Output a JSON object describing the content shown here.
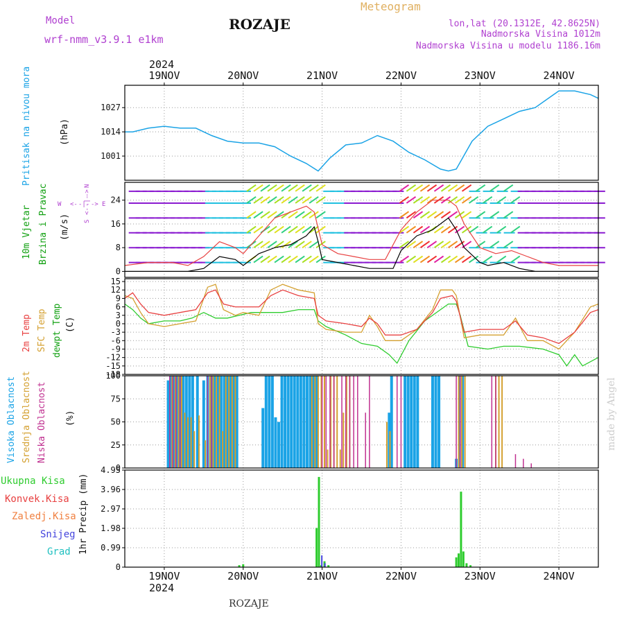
{
  "header": {
    "model_label": "Model",
    "model_value": "wrf-nmm_v3.9.1  e1km",
    "title": "ROZAJE",
    "meteogram": "Meteogram",
    "lonlat": "lon,lat (20.1312E, 42.8625N)",
    "altitude": "Nadmorska Visina 1012m",
    "model_altitude": "Nadmorska Visina u modelu 1186.16m",
    "year": "2024",
    "footer_title": "ROZAJE",
    "credit": "made by Angel"
  },
  "colors": {
    "pressure": "#1aa3e6",
    "wind_label": "#10a010",
    "temp2m": "#e84040",
    "sfc": "#d4a030",
    "dew": "#2ecc2e",
    "high_cloud": "#1aa3e6",
    "mid_cloud": "#d4a030",
    "low_cloud": "#c03090",
    "precip_total": "#2ecc2e",
    "precip_conv": "#e84040",
    "precip_frz": "#f08040",
    "snow": "#4444dd",
    "hail": "#20c0c0",
    "purple": "#b040d0",
    "orange": "#e0b060"
  },
  "chart_data": [
    {
      "type": "line",
      "panel": "pressure",
      "ylabel": [
        "Pritisak na nivou mora",
        "(hPa)"
      ],
      "yticks": [
        1001,
        1014,
        1027
      ],
      "ylim": [
        988,
        1039
      ],
      "xlim": [
        18.5,
        24.5
      ],
      "x_ticks": [
        "19NOV",
        "20NOV",
        "21NOV",
        "22NOV",
        "23NOV",
        "24NOV"
      ],
      "series": [
        {
          "x": [
            18.5,
            18.6,
            18.8,
            19.0,
            19.2,
            19.4,
            19.6,
            19.8,
            20.0,
            20.2,
            20.4,
            20.6,
            20.8,
            20.95,
            21.1,
            21.3,
            21.5,
            21.7,
            21.9,
            22.1,
            22.3,
            22.5,
            22.6,
            22.7,
            22.9,
            23.1,
            23.3,
            23.5,
            23.7,
            23.9,
            24.0,
            24.2,
            24.4,
            24.5
          ],
          "y": [
            1014,
            1014,
            1016,
            1017,
            1016,
            1016,
            1012,
            1009,
            1008,
            1008,
            1006,
            1001,
            997,
            993,
            1000,
            1007,
            1008,
            1012,
            1009,
            1003,
            999,
            994,
            993,
            994,
            1009,
            1017,
            1021,
            1025,
            1027,
            1033,
            1036,
            1036,
            1034,
            1032
          ]
        }
      ]
    },
    {
      "type": "line",
      "panel": "wind",
      "ylabel": [
        "10m Vjetar",
        "Brzina i Pravac",
        "(m/s)"
      ],
      "yticks": [
        0,
        8,
        16,
        24
      ],
      "ylim": [
        -2,
        30
      ],
      "compass": [
        "W",
        "<-",
        "-|-",
        "->",
        "E",
        "S",
        "<-",
        "-|-",
        "->",
        "N"
      ],
      "series": [
        {
          "name": "speed",
          "x": [
            18.5,
            18.8,
            19.1,
            19.3,
            19.5,
            19.7,
            19.9,
            20.0,
            20.2,
            20.4,
            20.6,
            20.8,
            20.9,
            20.95,
            21.0,
            21.2,
            21.4,
            21.6,
            21.8,
            21.9,
            22.0,
            22.2,
            22.4,
            22.6,
            22.7,
            22.8,
            23.0,
            23.1,
            23.3,
            23.5,
            23.7,
            24.0,
            24.3,
            24.5
          ],
          "y": [
            0,
            0,
            0,
            0,
            1,
            5,
            4,
            2,
            6,
            8,
            9,
            12,
            15,
            10,
            4,
            3,
            2,
            1,
            1,
            1,
            7,
            12,
            14,
            18,
            14,
            8,
            3,
            2,
            3,
            1,
            0,
            0,
            0,
            0
          ]
        },
        {
          "name": "gust",
          "x": [
            18.5,
            18.8,
            19.1,
            19.3,
            19.5,
            19.7,
            19.9,
            20.0,
            20.2,
            20.4,
            20.6,
            20.8,
            20.9,
            21.0,
            21.2,
            21.4,
            21.6,
            21.8,
            22.0,
            22.2,
            22.4,
            22.6,
            22.7,
            22.8,
            23.0,
            23.2,
            23.4,
            23.6,
            23.8,
            24.0,
            24.3,
            24.5
          ],
          "y": [
            2,
            3,
            3,
            2,
            5,
            10,
            8,
            6,
            12,
            18,
            20,
            22,
            20,
            9,
            6,
            5,
            4,
            4,
            14,
            20,
            24,
            24,
            22,
            16,
            8,
            6,
            7,
            5,
            3,
            2,
            2,
            2
          ]
        }
      ]
    },
    {
      "type": "line",
      "panel": "temperature",
      "ylabel": [
        "2m Temp",
        "SFC Temp",
        "dewpt Temp",
        "(C)"
      ],
      "yticks": [
        -18,
        -15,
        -12,
        -9,
        -6,
        -3,
        0,
        3,
        6,
        9,
        12,
        15
      ],
      "ylim": [
        -18,
        16
      ],
      "series": [
        {
          "name": "2m Temp",
          "x": [
            18.5,
            18.6,
            18.7,
            18.8,
            19.0,
            19.2,
            19.4,
            19.55,
            19.65,
            19.75,
            19.9,
            20.0,
            20.2,
            20.35,
            20.5,
            20.7,
            20.9,
            20.95,
            21.05,
            21.3,
            21.5,
            21.6,
            21.7,
            21.8,
            22.0,
            22.2,
            22.4,
            22.5,
            22.65,
            22.7,
            22.8,
            23.0,
            23.3,
            23.45,
            23.6,
            23.8,
            24.0,
            24.2,
            24.4,
            24.5
          ],
          "y": [
            9,
            11,
            7,
            4,
            3,
            4,
            5,
            11,
            12,
            7,
            6,
            6,
            6,
            10,
            12,
            10,
            9,
            3,
            1,
            0,
            -1,
            2,
            0,
            -4,
            -4,
            -2,
            4,
            9,
            10,
            8,
            -3,
            -2,
            -2,
            1,
            -4,
            -5,
            -7,
            -3,
            4,
            5
          ]
        },
        {
          "name": "SFC Temp",
          "x": [
            18.5,
            18.6,
            18.7,
            18.8,
            19.0,
            19.2,
            19.4,
            19.55,
            19.65,
            19.75,
            19.9,
            20.0,
            20.2,
            20.35,
            20.5,
            20.7,
            20.9,
            20.95,
            21.05,
            21.3,
            21.5,
            21.6,
            21.7,
            21.8,
            22.0,
            22.2,
            22.4,
            22.5,
            22.65,
            22.7,
            22.8,
            23.0,
            23.3,
            23.45,
            23.6,
            23.8,
            24.0,
            24.2,
            24.4,
            24.5
          ],
          "y": [
            10,
            9,
            4,
            0,
            -1,
            0,
            1,
            13,
            14,
            5,
            3,
            4,
            3,
            12,
            14,
            12,
            11,
            0,
            -2,
            -3,
            -3,
            3,
            -1,
            -6,
            -6,
            -2,
            5,
            12,
            12,
            10,
            -5,
            -4,
            -4,
            2,
            -6,
            -6,
            -9,
            -3,
            6,
            7
          ]
        },
        {
          "name": "dewpt Temp",
          "x": [
            18.5,
            18.6,
            18.7,
            18.8,
            19.0,
            19.2,
            19.35,
            19.5,
            19.65,
            19.8,
            19.95,
            20.1,
            20.3,
            20.5,
            20.7,
            20.9,
            20.95,
            21.05,
            21.3,
            21.5,
            21.7,
            21.85,
            21.95,
            22.1,
            22.3,
            22.5,
            22.6,
            22.7,
            22.75,
            22.85,
            23.1,
            23.3,
            23.5,
            23.8,
            24.0,
            24.1,
            24.2,
            24.3,
            24.5
          ],
          "y": [
            7,
            5,
            2,
            0,
            1,
            1,
            2,
            4,
            2,
            2,
            3,
            4,
            4,
            4,
            5,
            5,
            1,
            -1,
            -4,
            -7,
            -8,
            -11,
            -14,
            -6,
            1,
            5,
            7,
            7,
            3,
            -8,
            -9,
            -8,
            -8,
            -9,
            -11,
            -15,
            -11,
            -15,
            -12
          ]
        }
      ]
    },
    {
      "type": "bar",
      "panel": "clouds",
      "ylabel": [
        "Visoka Oblacnost",
        "Srednja Oblacnost",
        "Niska Oblacnost",
        "(%)"
      ],
      "yticks": [
        0,
        25,
        50,
        75,
        100
      ],
      "ylim": [
        0,
        100
      ],
      "series": [
        {
          "name": "Visoka Oblacnost",
          "x": [
            19.05,
            19.08,
            19.12,
            19.16,
            19.2,
            19.24,
            19.28,
            19.32,
            19.36,
            19.42,
            19.5,
            19.55,
            19.6,
            19.64,
            19.68,
            19.72,
            19.76,
            19.8,
            19.84,
            19.88,
            19.92,
            20.25,
            20.29,
            20.33,
            20.37,
            20.41,
            20.45,
            20.49,
            20.53,
            20.57,
            20.61,
            20.65,
            20.69,
            20.73,
            20.77,
            20.81,
            20.85,
            20.89,
            20.93,
            21.85,
            21.88,
            22.05,
            22.09,
            22.13,
            22.17,
            22.21,
            22.4,
            22.44,
            22.48,
            22.7,
            22.74,
            22.78
          ],
          "y": [
            95,
            100,
            100,
            100,
            100,
            100,
            100,
            100,
            100,
            100,
            95,
            100,
            100,
            100,
            100,
            100,
            100,
            100,
            100,
            100,
            100,
            65,
            100,
            100,
            100,
            55,
            50,
            100,
            100,
            100,
            100,
            100,
            100,
            100,
            100,
            100,
            100,
            100,
            100,
            60,
            100,
            100,
            100,
            100,
            100,
            100,
            100,
            100,
            100,
            10,
            100,
            100
          ]
        },
        {
          "name": "Srednja Oblacnost",
          "x": [
            19.1,
            19.14,
            19.18,
            19.22,
            19.26,
            19.3,
            19.34,
            19.38,
            19.44,
            19.52,
            19.58,
            19.62,
            19.66,
            19.7,
            19.74,
            19.78,
            19.82,
            19.86,
            19.9,
            20.87,
            20.91,
            20.95,
            20.99,
            21.03,
            21.07,
            21.11,
            21.15,
            21.19,
            21.23,
            21.27,
            21.31,
            21.35,
            21.82,
            21.86,
            22.73,
            22.77,
            22.81,
            23.2,
            23.24,
            23.28
          ],
          "y": [
            100,
            100,
            100,
            100,
            60,
            55,
            55,
            40,
            57,
            30,
            100,
            100,
            100,
            100,
            40,
            100,
            100,
            100,
            100,
            100,
            100,
            100,
            100,
            100,
            20,
            100,
            100,
            100,
            20,
            60,
            100,
            100,
            50,
            40,
            100,
            100,
            100,
            100,
            100,
            100
          ]
        },
        {
          "name": "Niska Oblacnost",
          "x": [
            19.07,
            19.11,
            19.15,
            19.2,
            19.55,
            19.6,
            21.0,
            21.05,
            21.1,
            21.15,
            21.25,
            21.3,
            21.35,
            21.4,
            21.45,
            21.55,
            21.6,
            21.95,
            22.0,
            22.7,
            22.75,
            23.15,
            23.2,
            23.45,
            23.55,
            23.65
          ],
          "y": [
            100,
            100,
            100,
            100,
            100,
            100,
            100,
            100,
            100,
            100,
            100,
            100,
            100,
            100,
            100,
            60,
            100,
            100,
            100,
            100,
            100,
            100,
            100,
            15,
            10,
            5
          ]
        }
      ]
    },
    {
      "type": "bar",
      "panel": "precipitation",
      "ylabel": [
        "1hr Precip (mm)"
      ],
      "legend": [
        "Ukupna Kisa",
        "Konvek.Kisa",
        "Zaledj.Kisa",
        "Snijeg",
        "Grad"
      ],
      "yticks": [
        0,
        0.99,
        1.98,
        2.97,
        3.96,
        4.95
      ],
      "ylim": [
        0,
        4.95
      ],
      "series": [
        {
          "name": "Ukupna Kisa",
          "x": [
            19.95,
            20.0,
            20.93,
            20.96,
            20.99,
            21.03,
            21.08,
            22.7,
            22.73,
            22.76,
            22.79,
            22.83,
            22.88
          ],
          "y": [
            0.1,
            0.15,
            2.0,
            4.6,
            0.1,
            0.3,
            0.1,
            0.5,
            0.7,
            3.85,
            0.8,
            0.2,
            0.1
          ]
        },
        {
          "name": "Snijeg",
          "x": [
            20.97,
            21.01
          ],
          "y": [
            0.6,
            0.2
          ]
        }
      ]
    }
  ]
}
